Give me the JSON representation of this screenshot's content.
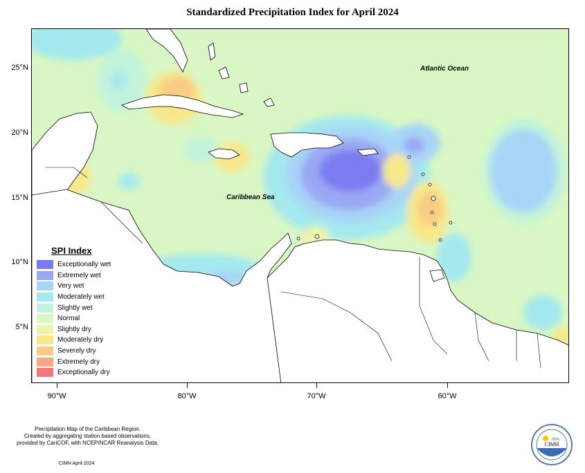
{
  "title": "Standardized Precipitation Index for April 2024",
  "map": {
    "lat_ticks": [
      "25°N",
      "20°N",
      "15°N",
      "10°N",
      "5°N"
    ],
    "lon_ticks": [
      "90°W",
      "80°W",
      "70°W",
      "60°W"
    ],
    "labels": {
      "atlantic": "Atlantic Ocean",
      "caribbean": "Caribbean Sea"
    },
    "colors": {
      "normal": "#d8f7c4",
      "land": "#ffffff",
      "coast": "#000000"
    }
  },
  "legend": {
    "title": "SPI Index",
    "items": [
      {
        "label": "Exceptionally wet",
        "color": "#7b7bf0"
      },
      {
        "label": "Extremely wet",
        "color": "#9aa8f4"
      },
      {
        "label": "Very wet",
        "color": "#a8d4f6"
      },
      {
        "label": "Moderately wet",
        "color": "#a4e9ee"
      },
      {
        "label": "Slightly wet",
        "color": "#c2f3dc"
      },
      {
        "label": "Normal",
        "color": "#d8f7c4"
      },
      {
        "label": "Slightly dry",
        "color": "#ecf5a8"
      },
      {
        "label": "Moderately dry",
        "color": "#f8e88a"
      },
      {
        "label": "Severely dry",
        "color": "#f8cc84"
      },
      {
        "label": "Extremely dry",
        "color": "#f6a880"
      },
      {
        "label": "Exceptionally dry",
        "color": "#f07878"
      }
    ]
  },
  "footnote": {
    "line1": "Precipitation Map of the Caribbean Region.",
    "line2": "Created by aggregating station based observations,",
    "line3": "provided by CariCOF, with NCEP/NCAR Reanalysis Data.",
    "date": "CIMH April-2024"
  },
  "logo": {
    "acronym": "CIMH",
    "icon": "sun-cloud-logo"
  }
}
